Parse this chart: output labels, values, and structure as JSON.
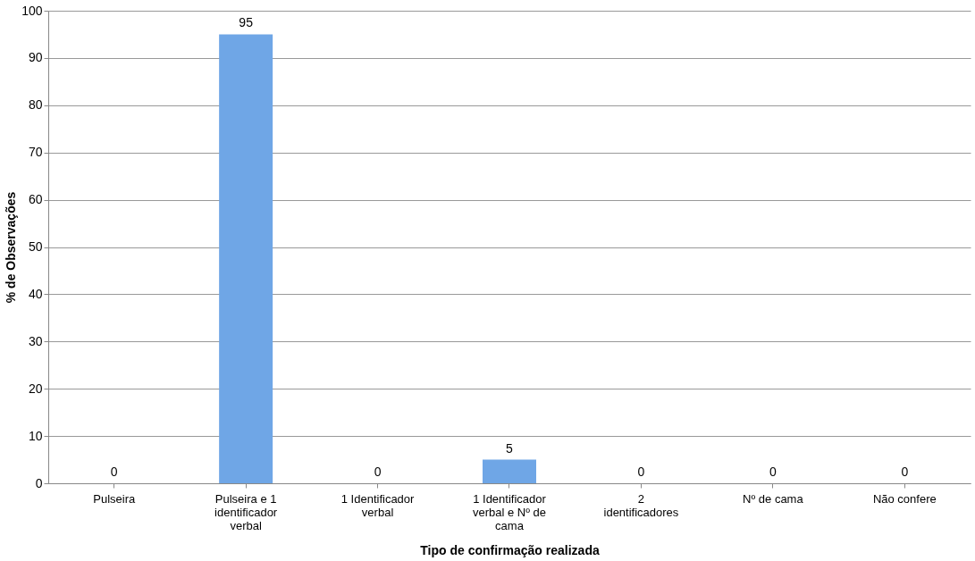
{
  "chart_data": {
    "type": "bar",
    "xlabel": "Tipo de confirmação realizada",
    "ylabel": "% de Observações",
    "categories": [
      "Pulseira",
      "Pulseira e 1 identificador verbal",
      "1 Identificador verbal",
      "1 Identificador verbal e Nº de cama",
      "2 identificadores",
      "Nº de cama",
      "Não confere"
    ],
    "values": [
      0,
      95,
      0,
      5,
      0,
      0,
      0
    ],
    "color": "#6fa6e6",
    "ylim": [
      0,
      100
    ],
    "yticks": [
      0,
      10,
      20,
      30,
      40,
      50,
      60,
      70,
      80,
      90,
      100
    ],
    "grid": "y",
    "data_labels": true
  }
}
